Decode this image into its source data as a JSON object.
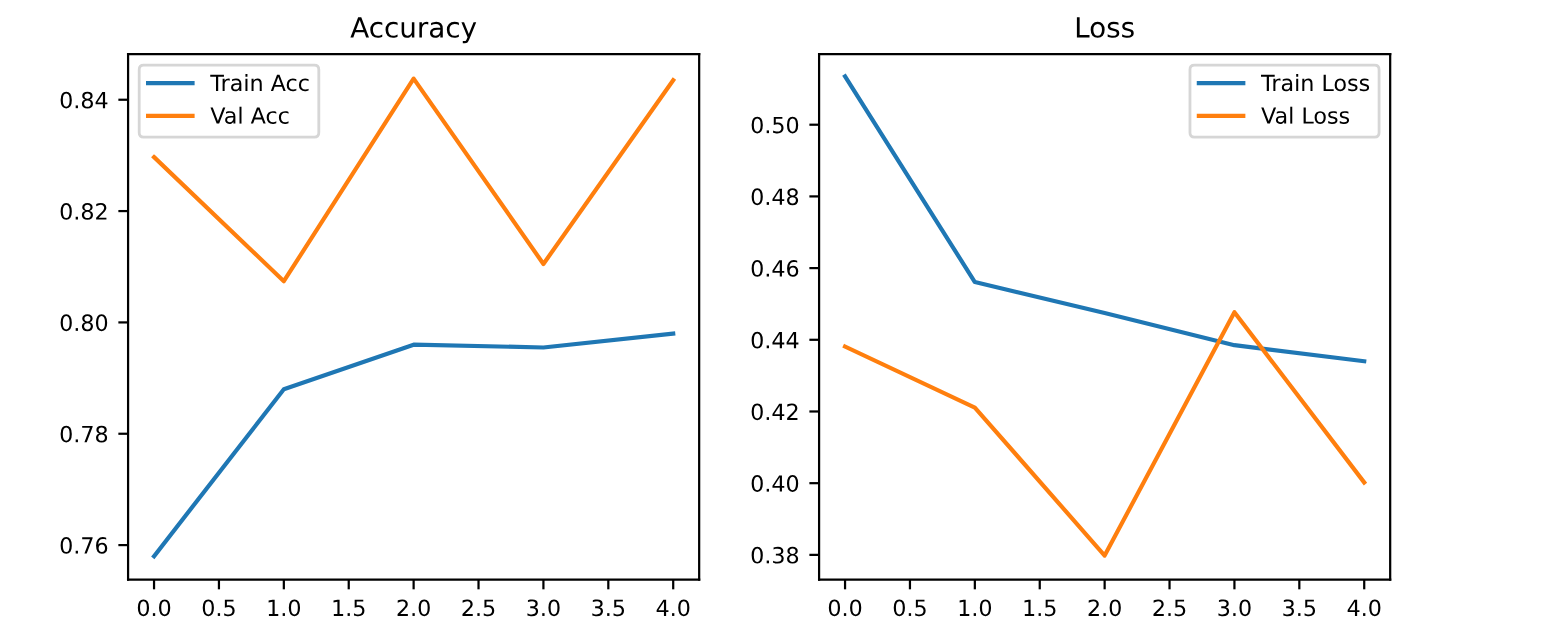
{
  "chart_data": [
    {
      "type": "line",
      "title": "Accuracy",
      "x": [
        0,
        1,
        2,
        3,
        4
      ],
      "series": [
        {
          "name": "Train Acc",
          "color": "#1f77b4",
          "values": [
            0.758,
            0.788,
            0.796,
            0.7955,
            0.798
          ]
        },
        {
          "name": "Val Acc",
          "color": "#ff7f0e",
          "values": [
            0.8297,
            0.8074,
            0.8438,
            0.8105,
            0.8435
          ]
        }
      ],
      "xlim": [
        -0.2,
        4.2
      ],
      "xticks": [
        {
          "value": 0,
          "label": "0.0"
        },
        {
          "value": 0.5,
          "label": "0.5"
        },
        {
          "value": 1,
          "label": "1.0"
        },
        {
          "value": 1.5,
          "label": "1.5"
        },
        {
          "value": 2,
          "label": "2.0"
        },
        {
          "value": 2.5,
          "label": "2.5"
        },
        {
          "value": 3,
          "label": "3.0"
        },
        {
          "value": 3.5,
          "label": "3.5"
        },
        {
          "value": 4,
          "label": "4.0"
        }
      ],
      "ylim": [
        0.7538,
        0.8482
      ],
      "yticks": [
        {
          "value": 0.76,
          "label": "0.76"
        },
        {
          "value": 0.78,
          "label": "0.78"
        },
        {
          "value": 0.8,
          "label": "0.80"
        },
        {
          "value": 0.82,
          "label": "0.82"
        },
        {
          "value": 0.84,
          "label": "0.84"
        }
      ],
      "legend": "top left",
      "grid": false
    },
    {
      "type": "line",
      "title": "Loss",
      "x": [
        0,
        1,
        2,
        3,
        4
      ],
      "series": [
        {
          "name": "Train Loss",
          "color": "#1f77b4",
          "values": [
            0.5135,
            0.4561,
            0.4475,
            0.4385,
            0.434
          ]
        },
        {
          "name": "Val Loss",
          "color": "#ff7f0e",
          "values": [
            0.4381,
            0.4211,
            0.3798,
            0.4477,
            0.4002
          ]
        }
      ],
      "xlim": [
        -0.2,
        4.2
      ],
      "xticks": [
        {
          "value": 0,
          "label": "0.0"
        },
        {
          "value": 0.5,
          "label": "0.5"
        },
        {
          "value": 1,
          "label": "1.0"
        },
        {
          "value": 1.5,
          "label": "1.5"
        },
        {
          "value": 2,
          "label": "2.0"
        },
        {
          "value": 2.5,
          "label": "2.5"
        },
        {
          "value": 3,
          "label": "3.0"
        },
        {
          "value": 3.5,
          "label": "3.5"
        },
        {
          "value": 4,
          "label": "4.0"
        }
      ],
      "ylim": [
        0.3731,
        0.5197
      ],
      "yticks": [
        {
          "value": 0.38,
          "label": "0.38"
        },
        {
          "value": 0.4,
          "label": "0.40"
        },
        {
          "value": 0.42,
          "label": "0.42"
        },
        {
          "value": 0.44,
          "label": "0.44"
        },
        {
          "value": 0.46,
          "label": "0.46"
        },
        {
          "value": 0.48,
          "label": "0.48"
        },
        {
          "value": 0.5,
          "label": "0.50"
        }
      ],
      "legend": "top right",
      "grid": false
    }
  ]
}
